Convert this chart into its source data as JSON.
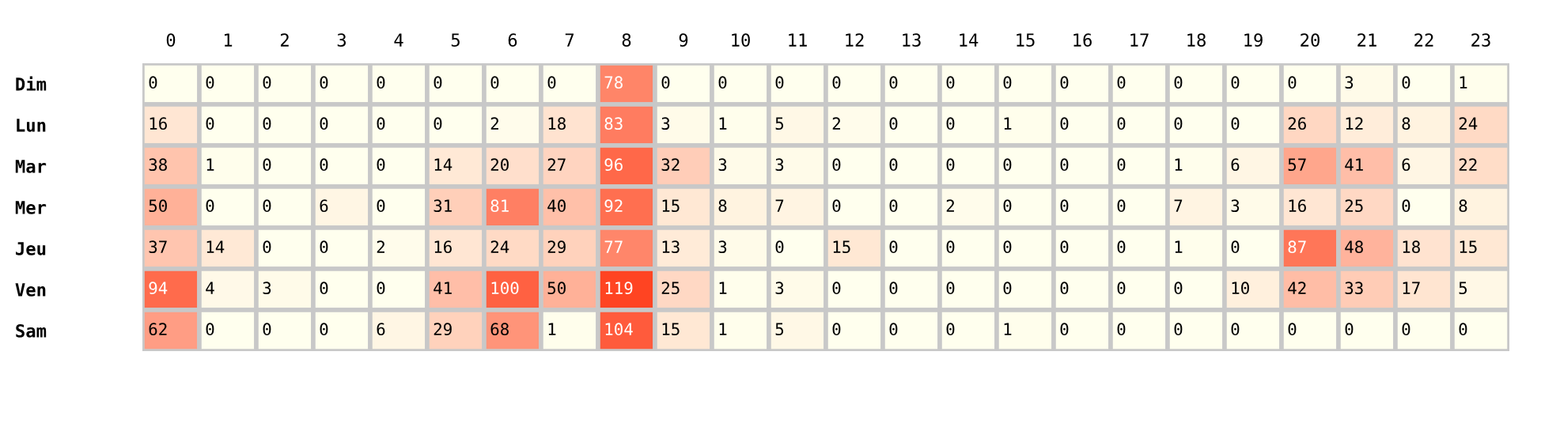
{
  "chart_data": {
    "type": "heatmap",
    "categories": [
      "0",
      "1",
      "2",
      "3",
      "4",
      "5",
      "6",
      "7",
      "8",
      "9",
      "10",
      "11",
      "12",
      "13",
      "14",
      "15",
      "16",
      "17",
      "18",
      "19",
      "20",
      "21",
      "22",
      "23"
    ],
    "y_categories": [
      "Dim",
      "Lun",
      "Mar",
      "Mer",
      "Jeu",
      "Ven",
      "Sam"
    ],
    "cells": [
      [
        0,
        0,
        0,
        0,
        0,
        0,
        0,
        0,
        78,
        0,
        0,
        0,
        0,
        0,
        0,
        0,
        0,
        0,
        0,
        0,
        0,
        3,
        0,
        1
      ],
      [
        16,
        0,
        0,
        0,
        0,
        0,
        2,
        18,
        83,
        3,
        1,
        5,
        2,
        0,
        0,
        1,
        0,
        0,
        0,
        0,
        26,
        12,
        8,
        24
      ],
      [
        38,
        1,
        0,
        0,
        0,
        14,
        20,
        27,
        96,
        32,
        3,
        3,
        0,
        0,
        0,
        0,
        0,
        0,
        1,
        6,
        57,
        41,
        6,
        22
      ],
      [
        50,
        0,
        0,
        6,
        0,
        31,
        81,
        40,
        92,
        15,
        8,
        7,
        0,
        0,
        2,
        0,
        0,
        0,
        7,
        3,
        16,
        25,
        0,
        8
      ],
      [
        37,
        14,
        0,
        0,
        2,
        16,
        24,
        29,
        77,
        13,
        3,
        0,
        15,
        0,
        0,
        0,
        0,
        0,
        1,
        0,
        87,
        48,
        18,
        15
      ],
      [
        94,
        4,
        3,
        0,
        0,
        41,
        100,
        50,
        119,
        25,
        1,
        3,
        0,
        0,
        0,
        0,
        0,
        0,
        0,
        10,
        42,
        33,
        17,
        5
      ],
      [
        62,
        0,
        0,
        0,
        6,
        29,
        68,
        1,
        104,
        15,
        1,
        5,
        0,
        0,
        0,
        1,
        0,
        0,
        0,
        0,
        0,
        0,
        0,
        0
      ]
    ],
    "colors": [
      "#ffffee",
      "#ff4422"
    ],
    "data_labels": true
  }
}
